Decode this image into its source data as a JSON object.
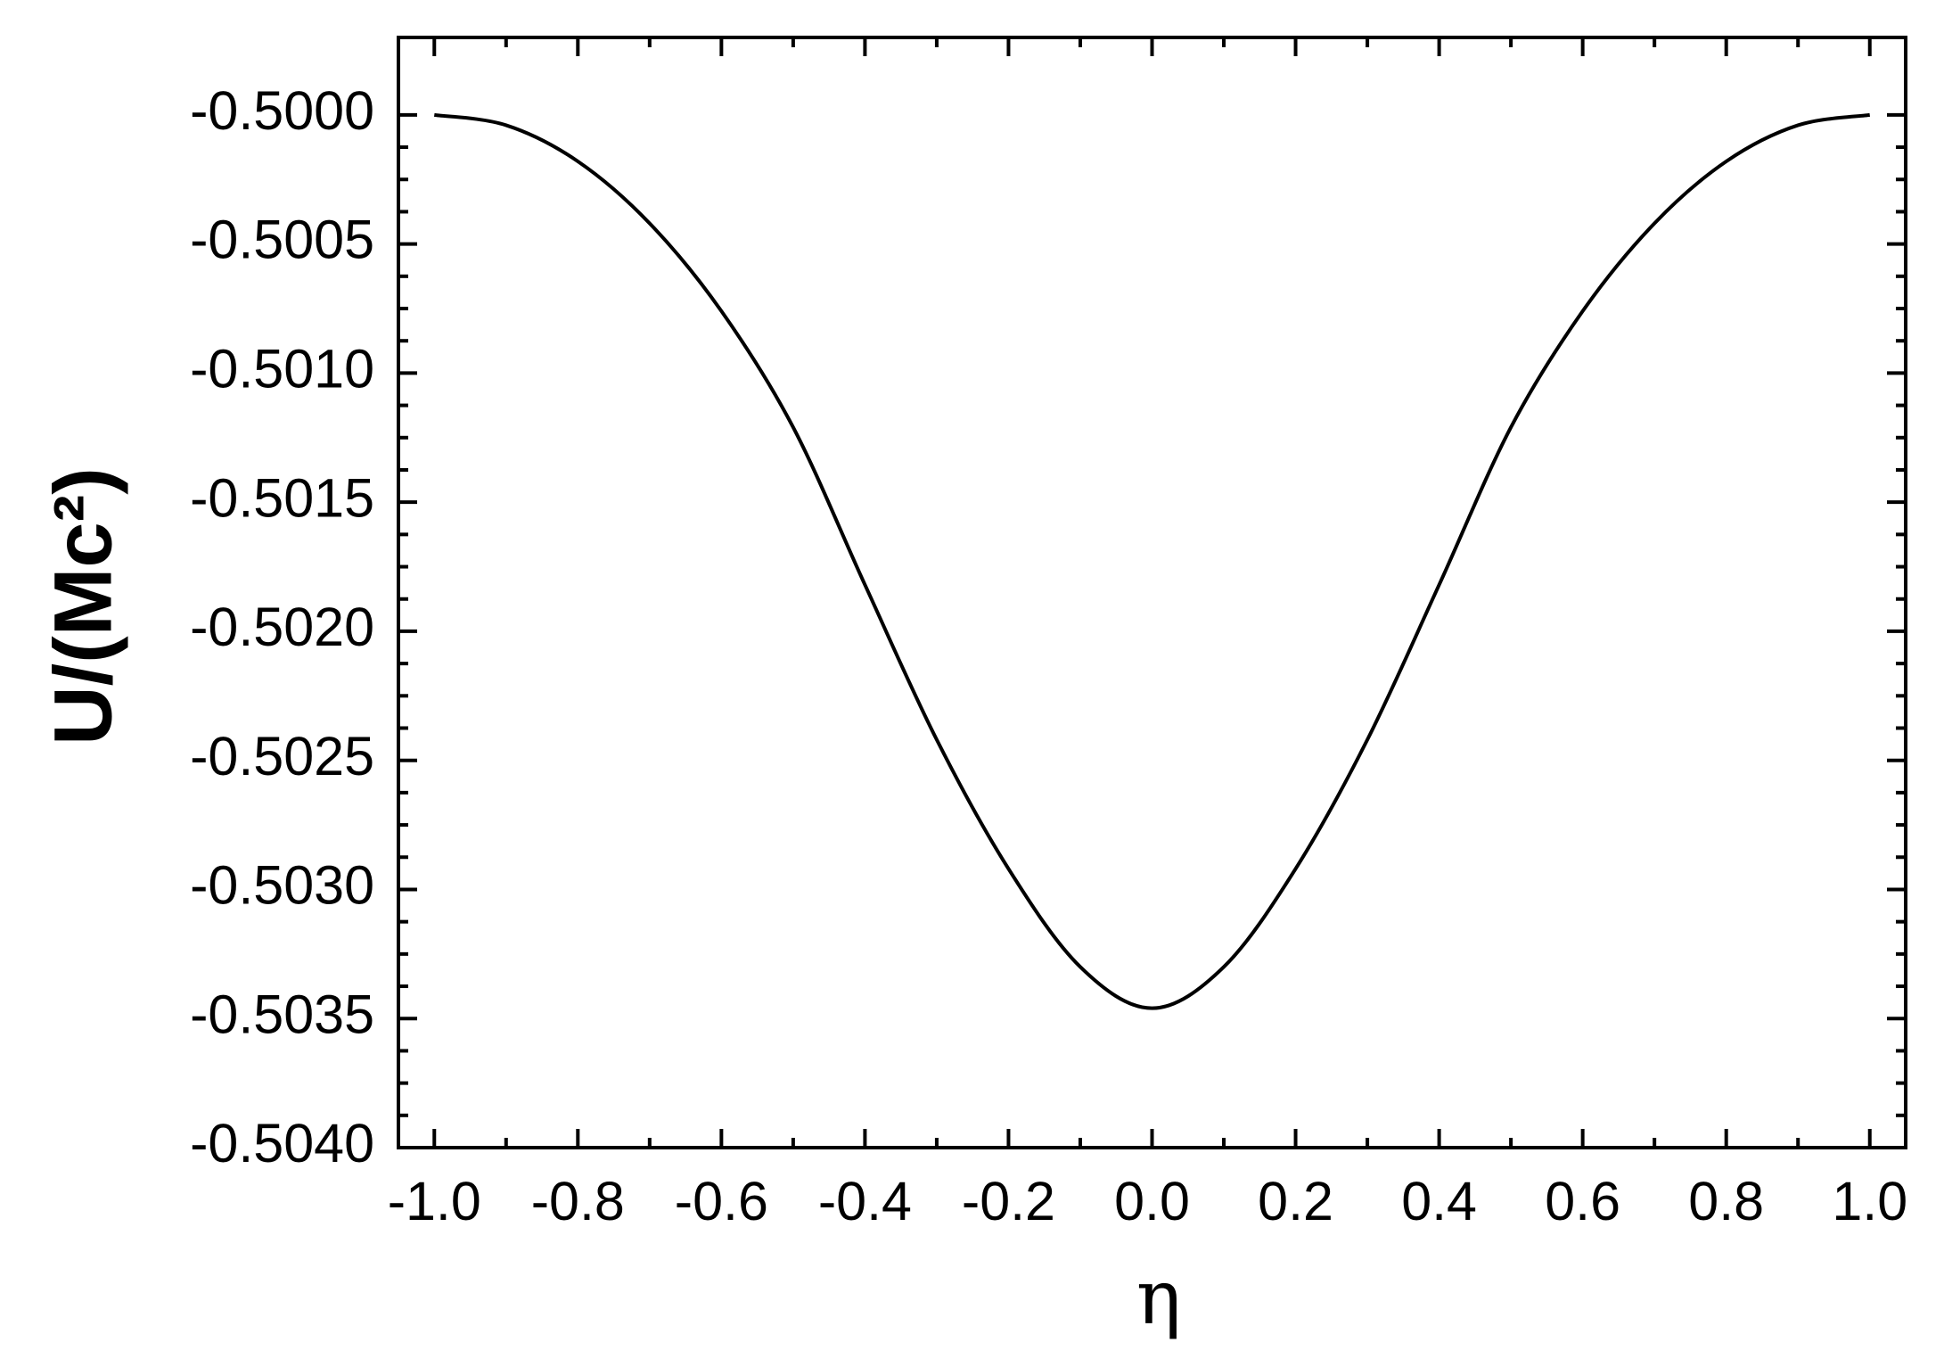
{
  "chart_data": {
    "type": "line",
    "x_label": "η",
    "y_label": "U/(Mc²)",
    "x": [
      -1.0,
      -0.9,
      -0.8,
      -0.7,
      -0.6,
      -0.5,
      -0.4,
      -0.3,
      -0.2,
      -0.1,
      0.0,
      0.1,
      0.2,
      0.3,
      0.4,
      0.5,
      0.6,
      0.7,
      0.8,
      0.9,
      1.0
    ],
    "series": [
      {
        "color": "#000000",
        "values": [
          -0.5,
          -0.50004,
          -0.50018,
          -0.50042,
          -0.50076,
          -0.50121,
          -0.50182,
          -0.50242,
          -0.50292,
          -0.5033,
          -0.50346,
          -0.5033,
          -0.50292,
          -0.50242,
          -0.50182,
          -0.50121,
          -0.50076,
          -0.50042,
          -0.50018,
          -0.50004,
          -0.5
        ]
      }
    ],
    "xlim": [
      -1.05,
      1.05
    ],
    "ylim": [
      -0.504,
      -0.4997
    ],
    "xticks": [
      {
        "value": -1.0,
        "label": "-1.0"
      },
      -0.8,
      -0.6,
      -0.4,
      -0.2,
      {
        "value": 0.0,
        "label": "0.0"
      },
      0.2,
      0.4,
      0.6,
      0.8,
      {
        "value": 1.0,
        "label": "1.0"
      }
    ],
    "yticks": [
      {
        "value": -0.5,
        "label": "-0.5000"
      },
      {
        "value": -0.5005,
        "label": "-0.5005"
      },
      {
        "value": -0.501,
        "label": "-0.5010"
      },
      {
        "value": -0.5015,
        "label": "-0.5015"
      },
      {
        "value": -0.502,
        "label": "-0.5020"
      },
      {
        "value": -0.5025,
        "label": "-0.5025"
      },
      {
        "value": -0.503,
        "label": "-0.5030"
      },
      {
        "value": -0.5035,
        "label": "-0.5035"
      },
      {
        "value": -0.504,
        "label": "-0.5040"
      }
    ],
    "grid": false
  }
}
